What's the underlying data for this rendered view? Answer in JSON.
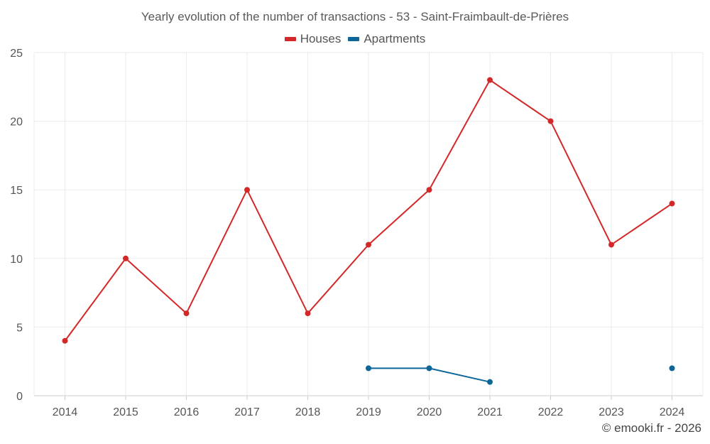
{
  "chart_data": {
    "type": "line",
    "title": "Yearly evolution of the number of transactions - 53 - Saint-Fraimbault-de-Prières",
    "categories": [
      "2014",
      "2015",
      "2016",
      "2017",
      "2018",
      "2019",
      "2020",
      "2021",
      "2022",
      "2023",
      "2024"
    ],
    "series": [
      {
        "name": "Houses",
        "color": "#d42828",
        "values": [
          4,
          10,
          6,
          15,
          6,
          11,
          15,
          23,
          20,
          11,
          14
        ]
      },
      {
        "name": "Apartments",
        "color": "#0d6699",
        "values": [
          null,
          null,
          null,
          null,
          null,
          2,
          2,
          1,
          null,
          null,
          2
        ]
      }
    ],
    "yticks": [
      0,
      5,
      10,
      15,
      20,
      25
    ],
    "ylim": [
      0,
      25
    ],
    "xlabel": "",
    "ylabel": "",
    "grid": true,
    "legend": "top-center"
  },
  "credit": "© emooki.fr - 2026"
}
